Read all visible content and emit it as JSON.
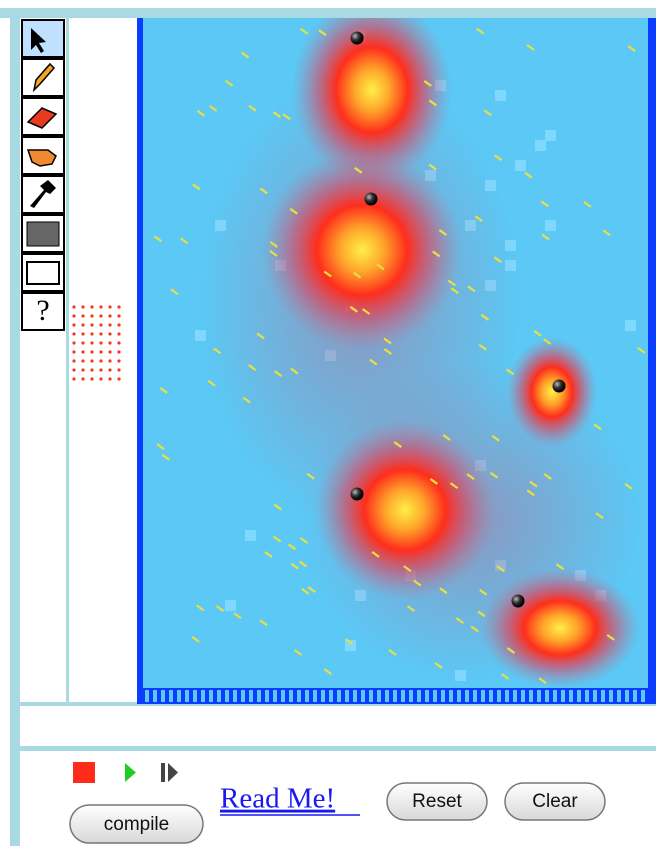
{
  "toolbar": {
    "help_label": "?"
  },
  "controls": {
    "read_me": "Read Me!",
    "reset": "Reset",
    "clear": "Clear",
    "compile": "compile"
  }
}
